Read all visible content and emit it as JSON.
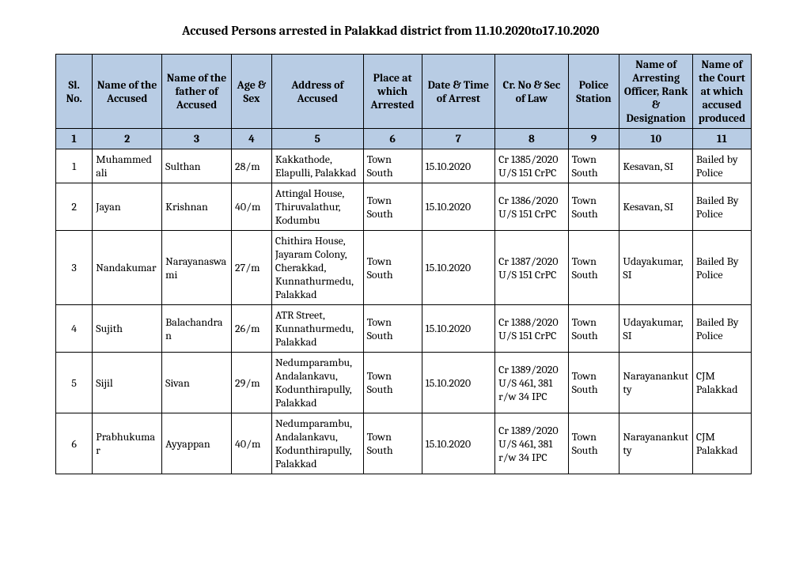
{
  "title": "Accused Persons arrested in   Palakkad    district from  11.10.2020to17.10.2020",
  "headers": [
    "Sl. No.",
    "Name of the Accused",
    "Name of the father of Accused",
    "Age & Sex",
    "Address of Accused",
    "Place at which Arrested",
    "Date & Time of Arrest",
    "Cr. No & Sec of Law",
    "Police Station",
    "Name of Arresting Officer, Rank & Designation",
    "Name of the Court at which accused produced"
  ],
  "colnums": [
    "1",
    "2",
    "3",
    "4",
    "5",
    "6",
    "7",
    "8",
    "9",
    "10",
    "11"
  ],
  "rows": [
    {
      "sl": "1",
      "name": "Muhammed ali",
      "father": "Sulthan",
      "age": "28/m",
      "addr": "Kakkathode, Elapulli, Palakkad",
      "place": "Town South",
      "date": "15.10.2020",
      "crno": "Cr 1385/2020 U/S 151 CrPC",
      "ps": "Town South",
      "officer": "Kesavan, SI",
      "court": "Bailed by Police"
    },
    {
      "sl": "2",
      "name": "Jayan",
      "father": "Krishnan",
      "age": "40/m",
      "addr": "Attingal House, Thiruvalathur, Kodumbu",
      "place": "Town South",
      "date": "15.10.2020",
      "crno": "Cr 1386/2020 U/S 151 CrPC",
      "ps": "Town South",
      "officer": "Kesavan, SI",
      "court": "Bailed By Police"
    },
    {
      "sl": "3",
      "name": "Nandakumar",
      "father": "Narayanaswami",
      "age": "27/m",
      "addr": "Chithira House, Jayaram Colony, Cherakkad, Kunnathurmedu, Palakkad",
      "place": "Town South",
      "date": "15.10.2020",
      "crno": "Cr 1387/2020 U/S 151 CrPC",
      "ps": "Town South",
      "officer": "Udayakumar, SI",
      "court": "Bailed By Police"
    },
    {
      "sl": "4",
      "name": "Sujith",
      "father": "Balachandran",
      "age": "26/m",
      "addr": "ATR Street, Kunnathurmedu, Palakkad",
      "place": "Town South",
      "date": "15.10.2020",
      "crno": "Cr 1388/2020 U/S 151 CrPC",
      "ps": "Town South",
      "officer": "Udayakumar, SI",
      "court": "Bailed By Police"
    },
    {
      "sl": "5",
      "name": "Sijil",
      "father": "Sivan",
      "age": "29/m",
      "addr": "Nedumparambu, Andalankavu, Kodunthirapully, Palakkad",
      "place": "Town South",
      "date": "15.10.2020",
      "crno": "Cr 1389/2020 U/S 461, 381 r/w 34 IPC",
      "ps": "Town South",
      "officer": "Narayanankutty",
      "court": "CJM Palakkad"
    },
    {
      "sl": "6",
      "name": "Prabhukumar",
      "father": "Ayyappan",
      "age": "40/m",
      "addr": "Nedumparambu, Andalankavu, Kodunthirapully, Palakkad",
      "place": "Town South",
      "date": "15.10.2020",
      "crno": "Cr 1389/2020 U/S 461, 381 r/w 34 IPC",
      "ps": "Town South",
      "officer": "Narayanankutty",
      "court": "CJM Palakkad"
    }
  ]
}
